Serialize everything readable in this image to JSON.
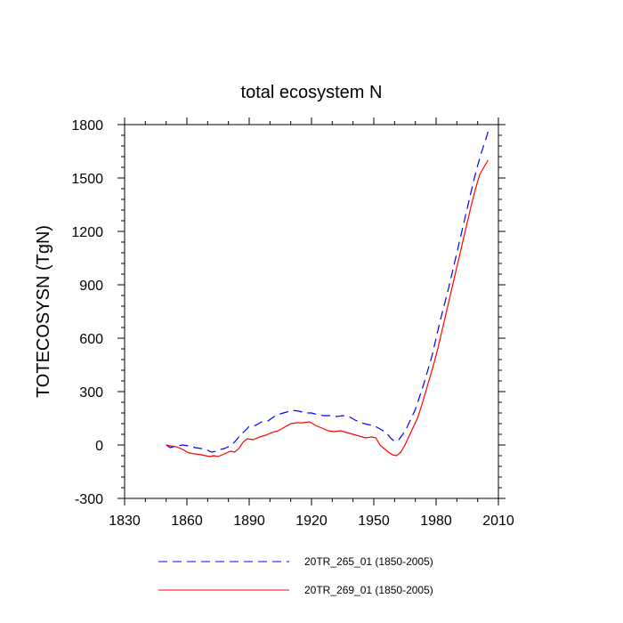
{
  "chart_data": {
    "type": "line",
    "title": "total ecosystem N",
    "xlabel": "",
    "ylabel": "TOTECOSYSN  (TgN)",
    "xlim": [
      1830,
      2010
    ],
    "ylim": [
      -300,
      1800
    ],
    "xticks": [
      1830,
      1860,
      1890,
      1920,
      1950,
      1980,
      2010
    ],
    "yticks": [
      -300,
      0,
      300,
      600,
      900,
      1200,
      1500,
      1800
    ],
    "grid": false,
    "legend_position": "bottom",
    "series": [
      {
        "name": "20TR_265_01 (1850-2005)",
        "color": "#0000ff",
        "style": "dashed",
        "x": [
          1850,
          1852,
          1855,
          1858,
          1861,
          1864,
          1867,
          1870,
          1872,
          1874,
          1876,
          1878,
          1880,
          1882,
          1884,
          1886,
          1888,
          1890,
          1893,
          1896,
          1899,
          1902,
          1905,
          1908,
          1911,
          1914,
          1917,
          1920,
          1923,
          1926,
          1929,
          1932,
          1935,
          1938,
          1941,
          1944,
          1947,
          1950,
          1953,
          1956,
          1958,
          1960,
          1962,
          1964,
          1966,
          1968,
          1970,
          1972,
          1974,
          1976,
          1978,
          1980,
          1982,
          1984,
          1986,
          1988,
          1990,
          1992,
          1994,
          1996,
          1998,
          2000,
          2002,
          2004,
          2005
        ],
        "y": [
          0,
          -15,
          -5,
          0,
          -5,
          -15,
          -20,
          -30,
          -40,
          -35,
          -25,
          -20,
          -10,
          5,
          30,
          60,
          80,
          105,
          110,
          130,
          135,
          160,
          175,
          185,
          195,
          190,
          180,
          180,
          170,
          165,
          165,
          160,
          165,
          160,
          140,
          125,
          115,
          110,
          90,
          70,
          40,
          20,
          30,
          60,
          100,
          150,
          200,
          270,
          340,
          420,
          500,
          600,
          700,
          790,
          880,
          980,
          1080,
          1180,
          1280,
          1380,
          1480,
          1570,
          1650,
          1720,
          1760
        ]
      },
      {
        "name": "20TR_269_01 (1850-2005)",
        "color": "#ff0000",
        "style": "solid",
        "x": [
          1850,
          1852,
          1855,
          1858,
          1861,
          1864,
          1867,
          1869,
          1871,
          1873,
          1875,
          1877,
          1879,
          1881,
          1883,
          1885,
          1887,
          1889,
          1892,
          1895,
          1898,
          1901,
          1904,
          1907,
          1910,
          1913,
          1916,
          1919,
          1922,
          1925,
          1928,
          1931,
          1934,
          1937,
          1940,
          1943,
          1946,
          1949,
          1951,
          1953,
          1955,
          1957,
          1959,
          1961,
          1963,
          1965,
          1967,
          1969,
          1971,
          1973,
          1975,
          1977,
          1979,
          1981,
          1983,
          1985,
          1987,
          1989,
          1991,
          1993,
          1995,
          1997,
          1999,
          2001,
          2003,
          2005
        ],
        "y": [
          0,
          -5,
          -10,
          -25,
          -45,
          -50,
          -55,
          -60,
          -65,
          -60,
          -65,
          -55,
          -45,
          -35,
          -40,
          -20,
          15,
          35,
          30,
          45,
          55,
          70,
          80,
          100,
          120,
          125,
          125,
          130,
          110,
          95,
          80,
          75,
          80,
          70,
          60,
          50,
          40,
          45,
          40,
          0,
          -20,
          -40,
          -55,
          -60,
          -40,
          0,
          50,
          100,
          150,
          220,
          300,
          380,
          460,
          550,
          650,
          750,
          850,
          950,
          1050,
          1150,
          1250,
          1350,
          1440,
          1520,
          1560,
          1600
        ]
      }
    ]
  }
}
